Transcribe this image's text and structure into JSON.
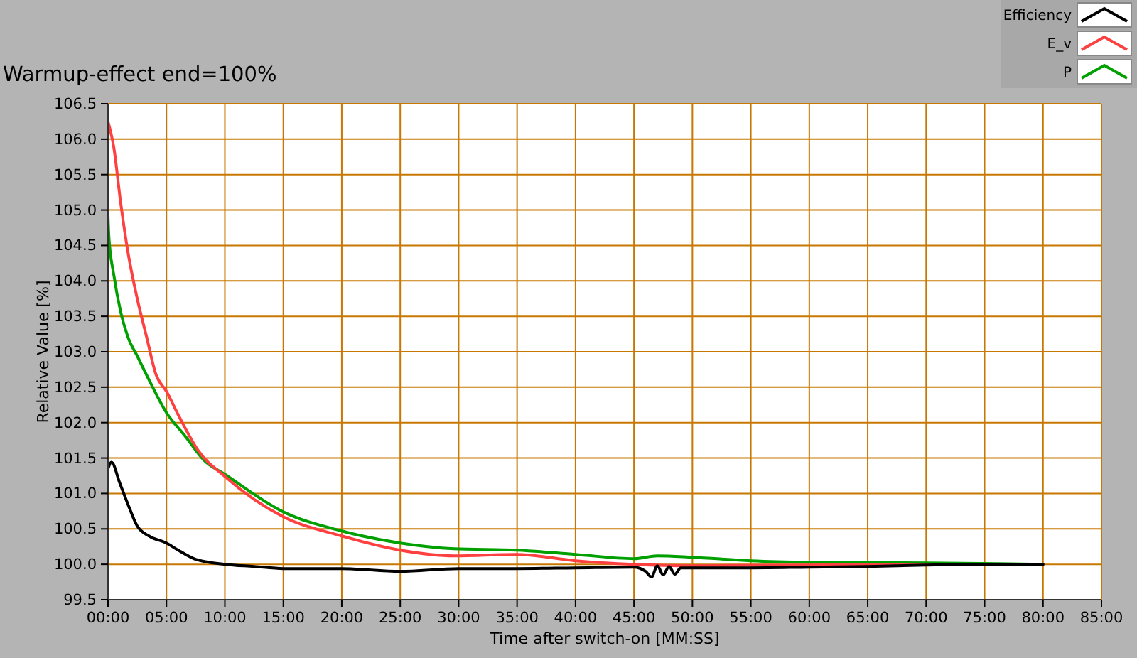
{
  "chart_data": {
    "type": "line",
    "title": "Warmup-effect end=100%",
    "xlabel": "Time after switch-on [MM:SS]",
    "ylabel": "Relative Value [%]",
    "xlim": [
      0,
      85
    ],
    "ylim": [
      99.5,
      106.5
    ],
    "xticks": [
      {
        "value": 0,
        "label": "00:00"
      },
      {
        "value": 5,
        "label": "05:00"
      },
      {
        "value": 10,
        "label": "10:00"
      },
      {
        "value": 15,
        "label": "15:00"
      },
      {
        "value": 20,
        "label": "20:00"
      },
      {
        "value": 25,
        "label": "25:00"
      },
      {
        "value": 30,
        "label": "30:00"
      },
      {
        "value": 35,
        "label": "35:00"
      },
      {
        "value": 40,
        "label": "40:00"
      },
      {
        "value": 45,
        "label": "45:00"
      },
      {
        "value": 50,
        "label": "50:00"
      },
      {
        "value": 55,
        "label": "55:00"
      },
      {
        "value": 60,
        "label": "60:00"
      },
      {
        "value": 65,
        "label": "65:00"
      },
      {
        "value": 70,
        "label": "70:00"
      },
      {
        "value": 75,
        "label": "75:00"
      },
      {
        "value": 80,
        "label": "80:00"
      },
      {
        "value": 85,
        "label": "85:00"
      }
    ],
    "yticks": [
      99.5,
      {
        "value": 100,
        "label": "100.0"
      },
      100.5,
      {
        "value": 101,
        "label": "101.0"
      },
      101.5,
      {
        "value": 102,
        "label": "102.0"
      },
      102.5,
      {
        "value": 103,
        "label": "103.0"
      },
      103.5,
      {
        "value": 104,
        "label": "104.0"
      },
      104.5,
      {
        "value": 105,
        "label": "105.0"
      },
      105.5,
      {
        "value": 106,
        "label": "106.0"
      },
      106.5
    ],
    "grid": true,
    "legend": "top right",
    "line_style": "solid",
    "marker": "none",
    "series": [
      {
        "name": "Efficiency",
        "color": "#000000",
        "x": [
          0,
          0.3,
          1,
          1.7,
          2.5,
          3.5,
          5,
          6,
          7.5,
          10,
          12.5,
          15,
          20,
          25,
          30,
          35,
          40,
          45,
          46,
          46.5,
          47,
          47.5,
          48,
          48.5,
          49,
          50,
          55,
          60,
          65,
          70,
          75,
          80
        ],
        "values": [
          101.35,
          101.44,
          101.15,
          100.85,
          100.54,
          100.4,
          100.3,
          100.2,
          100.07,
          100.0,
          99.97,
          99.94,
          99.94,
          99.9,
          99.94,
          99.94,
          99.95,
          99.96,
          99.9,
          99.82,
          99.98,
          99.85,
          99.97,
          99.86,
          99.95,
          99.95,
          99.95,
          99.96,
          99.97,
          99.99,
          100.0,
          100.0
        ]
      },
      {
        "name": "E_v",
        "color": "#ff4040",
        "x": [
          0,
          0.49,
          1.1,
          1.7,
          2.5,
          3.3,
          4.1,
          5,
          6.1,
          7.7,
          10,
          15,
          20,
          25,
          29.6,
          35,
          40,
          45,
          50,
          60,
          70,
          80
        ],
        "values": [
          106.25,
          105.89,
          105.08,
          104.41,
          103.75,
          103.21,
          102.68,
          102.44,
          102.08,
          101.61,
          101.24,
          100.67,
          100.4,
          100.2,
          100.12,
          100.14,
          100.05,
          100.0,
          99.98,
          99.99,
          100.0,
          100.0
        ]
      },
      {
        "name": "P",
        "color": "#00a000",
        "x": [
          0,
          0.08,
          0.49,
          1.1,
          1.7,
          2.5,
          3.7,
          5,
          6.6,
          8.2,
          10,
          15,
          20,
          25,
          29.6,
          35,
          40,
          45,
          47,
          50,
          55,
          60,
          70,
          80
        ],
        "values": [
          104.92,
          104.61,
          104.09,
          103.55,
          103.21,
          102.94,
          102.54,
          102.14,
          101.81,
          101.47,
          101.27,
          100.74,
          100.47,
          100.3,
          100.22,
          100.2,
          100.14,
          100.08,
          100.12,
          100.1,
          100.05,
          100.03,
          100.02,
          100.0
        ]
      }
    ]
  }
}
